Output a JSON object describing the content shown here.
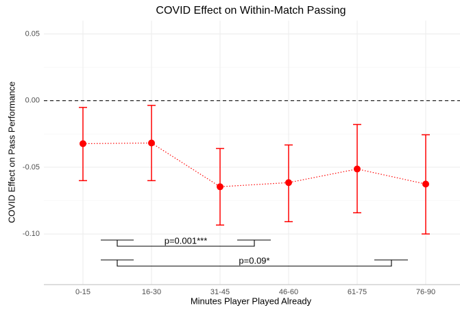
{
  "chart_data": {
    "type": "errorpoint",
    "title": "COVID Effect on Within-Match Passing",
    "x_label": "Minutes Player Played Already",
    "y_label": "COVID Effect on Pass Performance",
    "categories": [
      "0-15",
      "16-30",
      "31-45",
      "46-60",
      "61-75",
      "76-90"
    ],
    "values": [
      -0.0323,
      -0.0318,
      -0.0646,
      -0.0615,
      -0.0513,
      -0.0626
    ],
    "lower": [
      -0.06,
      -0.06,
      -0.0933,
      -0.0908,
      -0.0841,
      -0.1
    ],
    "upper": [
      -0.0051,
      -0.0036,
      -0.0359,
      -0.0333,
      -0.0179,
      -0.0256
    ],
    "color": "#ff0000",
    "ylim": [
      -0.138,
      0.06
    ],
    "yticks": [
      {
        "value": 0.05,
        "label": "0.05"
      },
      {
        "value": 0,
        "label": "0.00"
      },
      {
        "value": -0.05,
        "label": "-0.05"
      },
      {
        "value": -0.1,
        "label": "-0.10"
      }
    ],
    "reference_line": 0,
    "grid": true,
    "annotations": [
      "p=0.001***",
      "p=0.09*"
    ]
  }
}
